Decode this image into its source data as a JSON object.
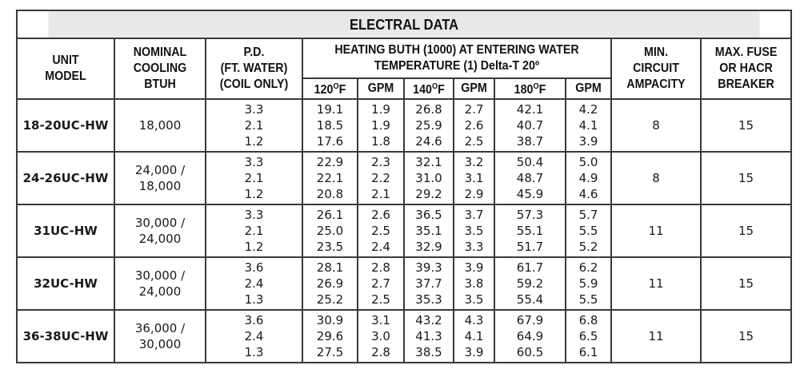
{
  "title": "ELECTRAL DATA",
  "headers": {
    "unit_model": [
      "UNIT",
      "MODEL"
    ],
    "nominal_cooling": [
      "NOMINAL",
      "COOLING",
      "BTUH"
    ],
    "pd": [
      "P.D.",
      "(FT. WATER)",
      "(COIL ONLY)"
    ],
    "heating": [
      "HEATING BUTH (1000) AT ENTERING WATER",
      "TEMPERATURE (1) Delta-T 20º"
    ],
    "min_circuit": [
      "MIN.",
      "CIRCUIT",
      "AMPACITY"
    ],
    "max_fuse": [
      "MAX. FUSE",
      "OR HACR",
      "BREAKER"
    ],
    "sub": [
      {
        "value": "120",
        "degree": "O",
        "unit": "F"
      },
      {
        "label": "GPM"
      },
      {
        "value": "140",
        "degree": "O",
        "unit": "F"
      },
      {
        "label": "GPM"
      },
      {
        "value": "180",
        "degree": "O",
        "unit": "F"
      },
      {
        "label": "GPM"
      }
    ]
  },
  "rows": [
    {
      "model": "18-20UC-HW",
      "cooling": [
        "18,000"
      ],
      "pd": [
        "3.3",
        "2.1",
        "1.2"
      ],
      "t120": [
        "19.1",
        "18.5",
        "17.6"
      ],
      "gpm120": [
        "1.9",
        "1.9",
        "1.8"
      ],
      "t140": [
        "26.8",
        "25.9",
        "24.6"
      ],
      "gpm140": [
        "2.7",
        "2.6",
        "2.5"
      ],
      "t180": [
        "42.1",
        "40.7",
        "38.7"
      ],
      "gpm180": [
        "4.2",
        "4.1",
        "3.9"
      ],
      "min_circuit": "8",
      "max_fuse": "15"
    },
    {
      "model": "24-26UC-HW",
      "cooling": [
        "24,000 /",
        "18,000"
      ],
      "pd": [
        "3.3",
        "2.1",
        "1.2"
      ],
      "t120": [
        "22.9",
        "22.1",
        "20.8"
      ],
      "gpm120": [
        "2.3",
        "2.2",
        "2.1"
      ],
      "t140": [
        "32.1",
        "31.0",
        "29.2"
      ],
      "gpm140": [
        "3.2",
        "3.1",
        "2.9"
      ],
      "t180": [
        "50.4",
        "48.7",
        "45.9"
      ],
      "gpm180": [
        "5.0",
        "4.9",
        "4.6"
      ],
      "min_circuit": "8",
      "max_fuse": "15"
    },
    {
      "model": "31UC-HW",
      "cooling": [
        "30,000 /",
        "24,000"
      ],
      "pd": [
        "3.3",
        "2.1",
        "1.2"
      ],
      "t120": [
        "26.1",
        "25.0",
        "23.5"
      ],
      "gpm120": [
        "2.6",
        "2.5",
        "2.4"
      ],
      "t140": [
        "36.5",
        "35.1",
        "32.9"
      ],
      "gpm140": [
        "3.7",
        "3.5",
        "3.3"
      ],
      "t180": [
        "57.3",
        "55.1",
        "51.7"
      ],
      "gpm180": [
        "5.7",
        "5.5",
        "5.2"
      ],
      "min_circuit": "11",
      "max_fuse": "15"
    },
    {
      "model": "32UC-HW",
      "cooling": [
        "30,000 /",
        "24,000"
      ],
      "pd": [
        "3.6",
        "2.4",
        "1.3"
      ],
      "t120": [
        "28.1",
        "26.9",
        "25.2"
      ],
      "gpm120": [
        "2.8",
        "2.7",
        "2.5"
      ],
      "t140": [
        "39.3",
        "37.7",
        "35.3"
      ],
      "gpm140": [
        "3.9",
        "3.8",
        "3.5"
      ],
      "t180": [
        "61.7",
        "59.2",
        "55.4"
      ],
      "gpm180": [
        "6.2",
        "5.9",
        "5.5"
      ],
      "min_circuit": "11",
      "max_fuse": "15"
    },
    {
      "model": "36-38UC-HW",
      "cooling": [
        "36,000 /",
        "30,000"
      ],
      "pd": [
        "3.6",
        "2.4",
        "1.3"
      ],
      "t120": [
        "30.9",
        "29.6",
        "27.5"
      ],
      "gpm120": [
        "3.1",
        "3.0",
        "2.8"
      ],
      "t140": [
        "43.2",
        "41.3",
        "38.5"
      ],
      "gpm140": [
        "4.3",
        "4.1",
        "3.9"
      ],
      "t180": [
        "67.9",
        "64.9",
        "60.5"
      ],
      "gpm180": [
        "6.8",
        "6.5",
        "6.1"
      ],
      "min_circuit": "11",
      "max_fuse": "15"
    }
  ]
}
